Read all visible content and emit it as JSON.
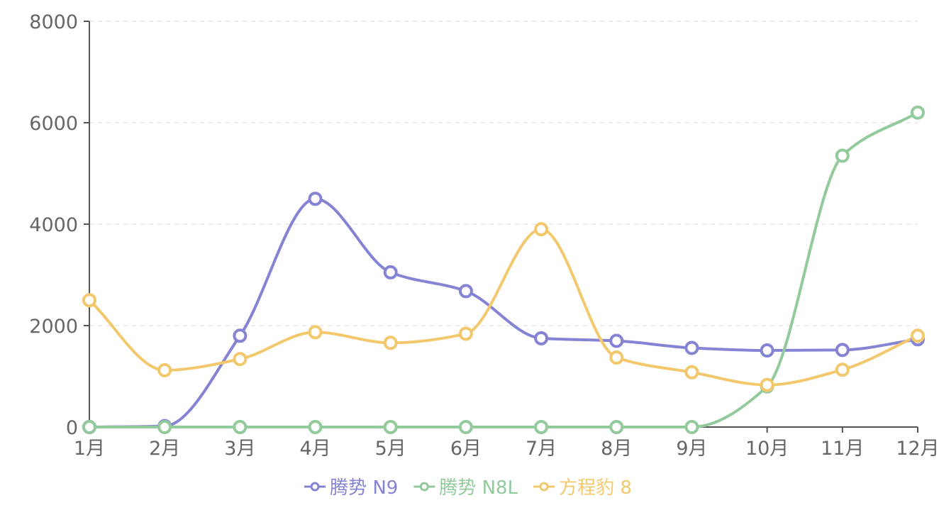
{
  "chart_data": {
    "type": "line",
    "smooth": true,
    "categories": [
      "1月",
      "2月",
      "3月",
      "4月",
      "5月",
      "6月",
      "7月",
      "8月",
      "9月",
      "10月",
      "11月",
      "12月"
    ],
    "ylim": [
      0,
      8000
    ],
    "yticks": [
      "0",
      "2000",
      "4000",
      "6000",
      "8000"
    ],
    "grid": "horizontal-dashed",
    "legend_position": "bottom-center",
    "series": [
      {
        "name": "腾势 N9",
        "color": "#8583d3",
        "values": [
          0,
          20,
          1800,
          4500,
          3050,
          2680,
          1750,
          1700,
          1560,
          1510,
          1520,
          1730
        ]
      },
      {
        "name": "腾势 N8L",
        "color": "#92ca9c",
        "values": [
          0,
          0,
          0,
          0,
          0,
          0,
          0,
          0,
          0,
          800,
          5350,
          6200
        ]
      },
      {
        "name": "方程豹 8",
        "color": "#f3c86d",
        "values": [
          2500,
          1120,
          1340,
          1870,
          1660,
          1840,
          3900,
          1370,
          1080,
          830,
          1130,
          1800
        ]
      }
    ]
  }
}
